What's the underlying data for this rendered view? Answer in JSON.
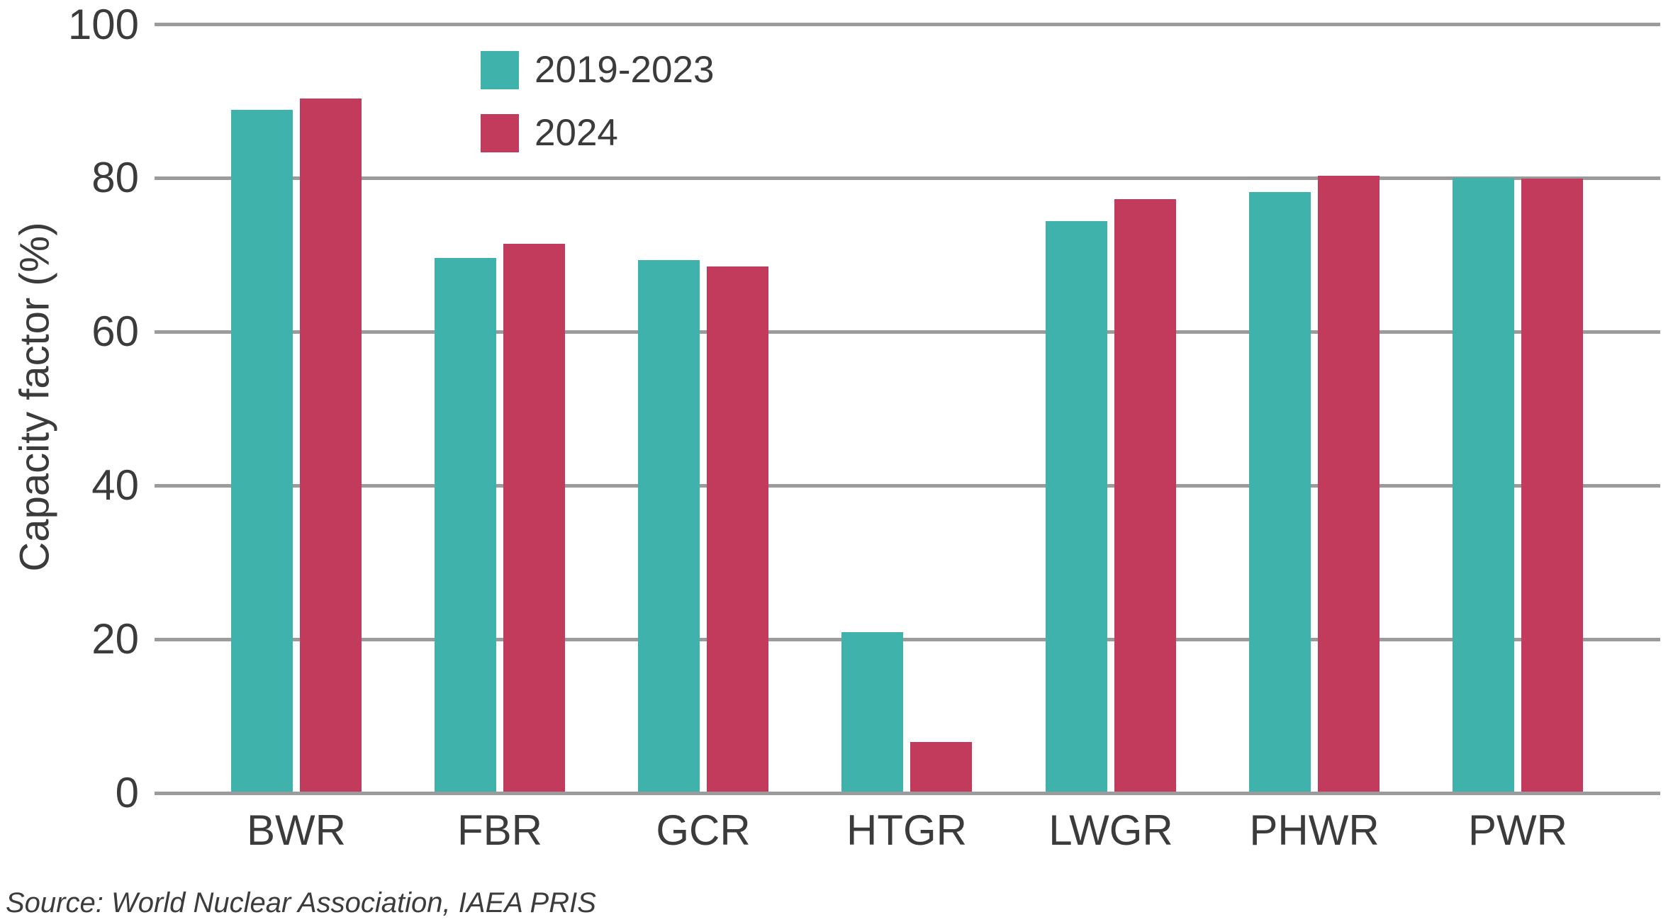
{
  "chart_data": {
    "type": "bar",
    "title": "",
    "xlabel": "",
    "ylabel": "Capacity factor (%)",
    "categories": [
      "BWR",
      "FBR",
      "GCR",
      "HTGR",
      "LWGR",
      "PHWR",
      "PWR"
    ],
    "series": [
      {
        "name": "2019-2023",
        "color": "#3fb3ab",
        "values": [
          88.9,
          69.6,
          69.3,
          20.9,
          74.4,
          78.2,
          80.0
        ]
      },
      {
        "name": "2024",
        "color": "#c23a5c",
        "values": [
          90.4,
          71.5,
          68.5,
          6.6,
          77.3,
          80.3,
          79.9
        ]
      }
    ],
    "ylim": [
      0,
      100
    ],
    "yticks": [
      0,
      20,
      40,
      60,
      80,
      100
    ],
    "grid": "horizontal-gridlines",
    "gridline_color": "#9a9b9d",
    "text_color": "#3b3b3b",
    "legend_position": "top-left-inside"
  },
  "source_note": "Source: World Nuclear Association, IAEA PRIS"
}
